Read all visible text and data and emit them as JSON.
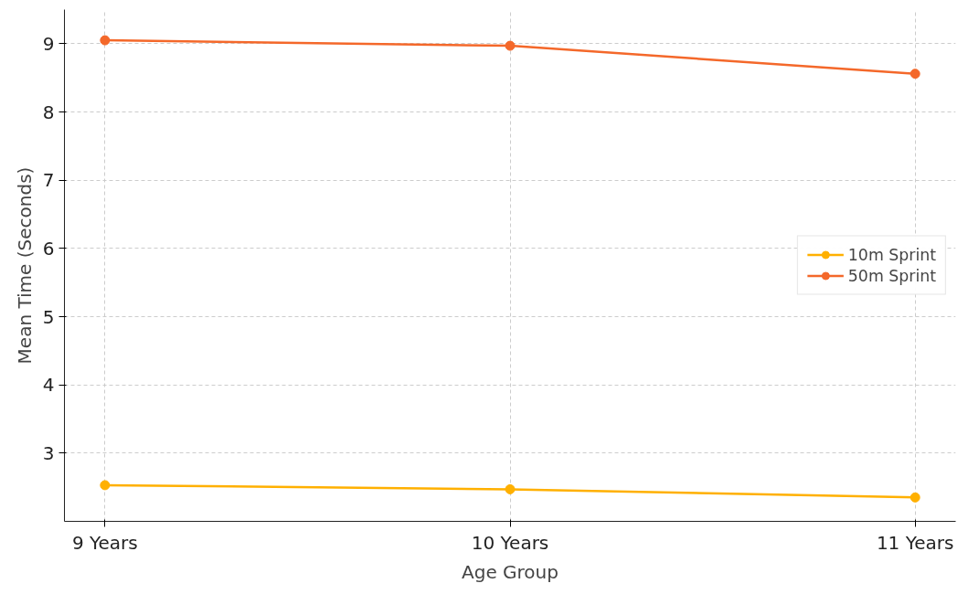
{
  "chart_data": {
    "type": "line",
    "xlabel": "Age Group",
    "ylabel": "Mean Time (Seconds)",
    "categories": [
      "9 Years",
      "10 Years",
      "11 Years"
    ],
    "series": [
      {
        "name": "10m Sprint",
        "color": "#ffb000",
        "values": [
          2.53,
          2.47,
          2.35
        ]
      },
      {
        "name": "50m Sprint",
        "color": "#f4682a",
        "values": [
          9.05,
          8.97,
          8.56
        ]
      }
    ],
    "ylim": [
      2.0,
      9.5
    ],
    "yticks": [
      3,
      4,
      5,
      6,
      7,
      8,
      9
    ],
    "grid": true,
    "legend": "right",
    "marker": "circle",
    "line_style": "solid"
  }
}
